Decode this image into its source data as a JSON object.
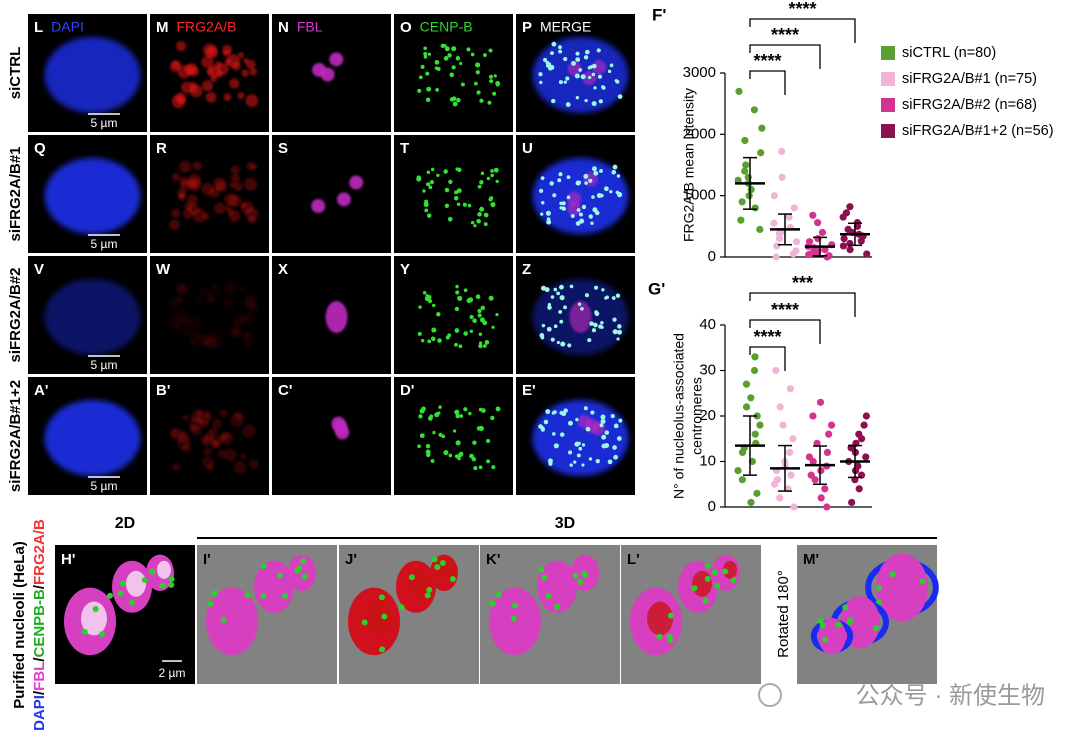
{
  "panels": {
    "channels": [
      "DAPI",
      "FRG2A/B",
      "FBL",
      "CENP-B",
      "MERGE"
    ],
    "rows": [
      {
        "label": "siCTRL",
        "letters": [
          "L",
          "M",
          "N",
          "O",
          "P"
        ],
        "scale": "5 µm"
      },
      {
        "label": "siFRG2A/B#1",
        "letters": [
          "Q",
          "R",
          "S",
          "T",
          "U"
        ],
        "scale": "5 µm"
      },
      {
        "label": "siFRG2A/B#2",
        "letters": [
          "V",
          "W",
          "X",
          "Y",
          "Z"
        ],
        "scale": "5 µm"
      },
      {
        "label": "siFRG2A/B#1+2",
        "letters": [
          "A'",
          "B'",
          "C'",
          "D'",
          "E'"
        ],
        "scale": "5 µm"
      }
    ]
  },
  "nucleoli": {
    "label": "Purified nucleoli (HeLa)",
    "stain_parts": [
      "DAPI",
      "/",
      "FBL",
      "/",
      "CENPB-B",
      "/",
      "FRG2A/B"
    ],
    "headers": [
      "2D",
      "3D"
    ],
    "letters": [
      "H'",
      "I'",
      "J'",
      "K'",
      "L'",
      "M'"
    ],
    "scale": "2 µm",
    "rotated": "Rotated 180°"
  },
  "watermark": "公众号 · 新使生物",
  "chart_data": [
    {
      "type": "dot",
      "title": "F'",
      "ylabel": [
        "FRG2A/B mean intensity"
      ],
      "ylim": [
        0,
        3000
      ],
      "yticks": [
        0,
        1000,
        2000,
        3000
      ],
      "series": [
        {
          "name": "siCTRL (n=80)",
          "color": "#5a9e32",
          "values": [
            2700,
            2400,
            2100,
            1900,
            1700,
            1500,
            1400,
            1300,
            1250,
            1200,
            1100,
            1000,
            900,
            800,
            600,
            450
          ],
          "mean": 1200,
          "sd": 420
        },
        {
          "name": "siFRG2A/B#1 (n=75)",
          "color": "#f1b4d8",
          "values": [
            1720,
            1300,
            1000,
            800,
            650,
            550,
            480,
            420,
            380,
            300,
            250,
            180,
            100,
            50,
            0
          ],
          "mean": 450,
          "sd": 250
        },
        {
          "name": "siFRG2A/B#2 (n=68)",
          "color": "#d4338f",
          "values": [
            680,
            560,
            400,
            300,
            250,
            200,
            170,
            150,
            120,
            100,
            80,
            60,
            40,
            20,
            0
          ],
          "mean": 170,
          "sd": 150
        },
        {
          "name": "siFRG2A/B#1+2 (n=56)",
          "color": "#8c0f4f",
          "values": [
            820,
            720,
            650,
            560,
            500,
            450,
            400,
            370,
            340,
            300,
            260,
            220,
            180,
            120,
            50
          ],
          "mean": 370,
          "sd": 180
        }
      ],
      "comparisons": [
        {
          "series": [
            0,
            1
          ],
          "label": "****"
        },
        {
          "series": [
            0,
            2
          ],
          "label": "****"
        },
        {
          "series": [
            0,
            3
          ],
          "label": "****"
        }
      ]
    },
    {
      "type": "dot",
      "title": "G'",
      "ylabel": [
        "N° of nucleolus-associated",
        "centromeres"
      ],
      "ylim": [
        0,
        40
      ],
      "yticks": [
        0,
        10,
        20,
        30,
        40
      ],
      "series": [
        {
          "color": "#5a9e32",
          "values": [
            33,
            30,
            27,
            24,
            22,
            20,
            18,
            16,
            14,
            13,
            12,
            10,
            8,
            6,
            3,
            1
          ],
          "mean": 13.5,
          "sd": 6.5
        },
        {
          "color": "#f1b4d8",
          "values": [
            30,
            26,
            22,
            18,
            15,
            12,
            10,
            9,
            8,
            7,
            6,
            5,
            4,
            2,
            0
          ],
          "mean": 8.5,
          "sd": 5
        },
        {
          "color": "#d4338f",
          "values": [
            23,
            20,
            18,
            16,
            14,
            12,
            11,
            10,
            9,
            8,
            7,
            6,
            4,
            2,
            0
          ],
          "mean": 9.2,
          "sd": 4.2
        },
        {
          "color": "#8c0f4f",
          "values": [
            20,
            18,
            16,
            15,
            14,
            13,
            12,
            11,
            10,
            9,
            8,
            7,
            6,
            4,
            1
          ],
          "mean": 10,
          "sd": 3.5
        }
      ],
      "comparisons": [
        {
          "series": [
            0,
            1
          ],
          "label": "****"
        },
        {
          "series": [
            0,
            2
          ],
          "label": "****"
        },
        {
          "series": [
            0,
            3
          ],
          "label": "***"
        }
      ]
    }
  ]
}
